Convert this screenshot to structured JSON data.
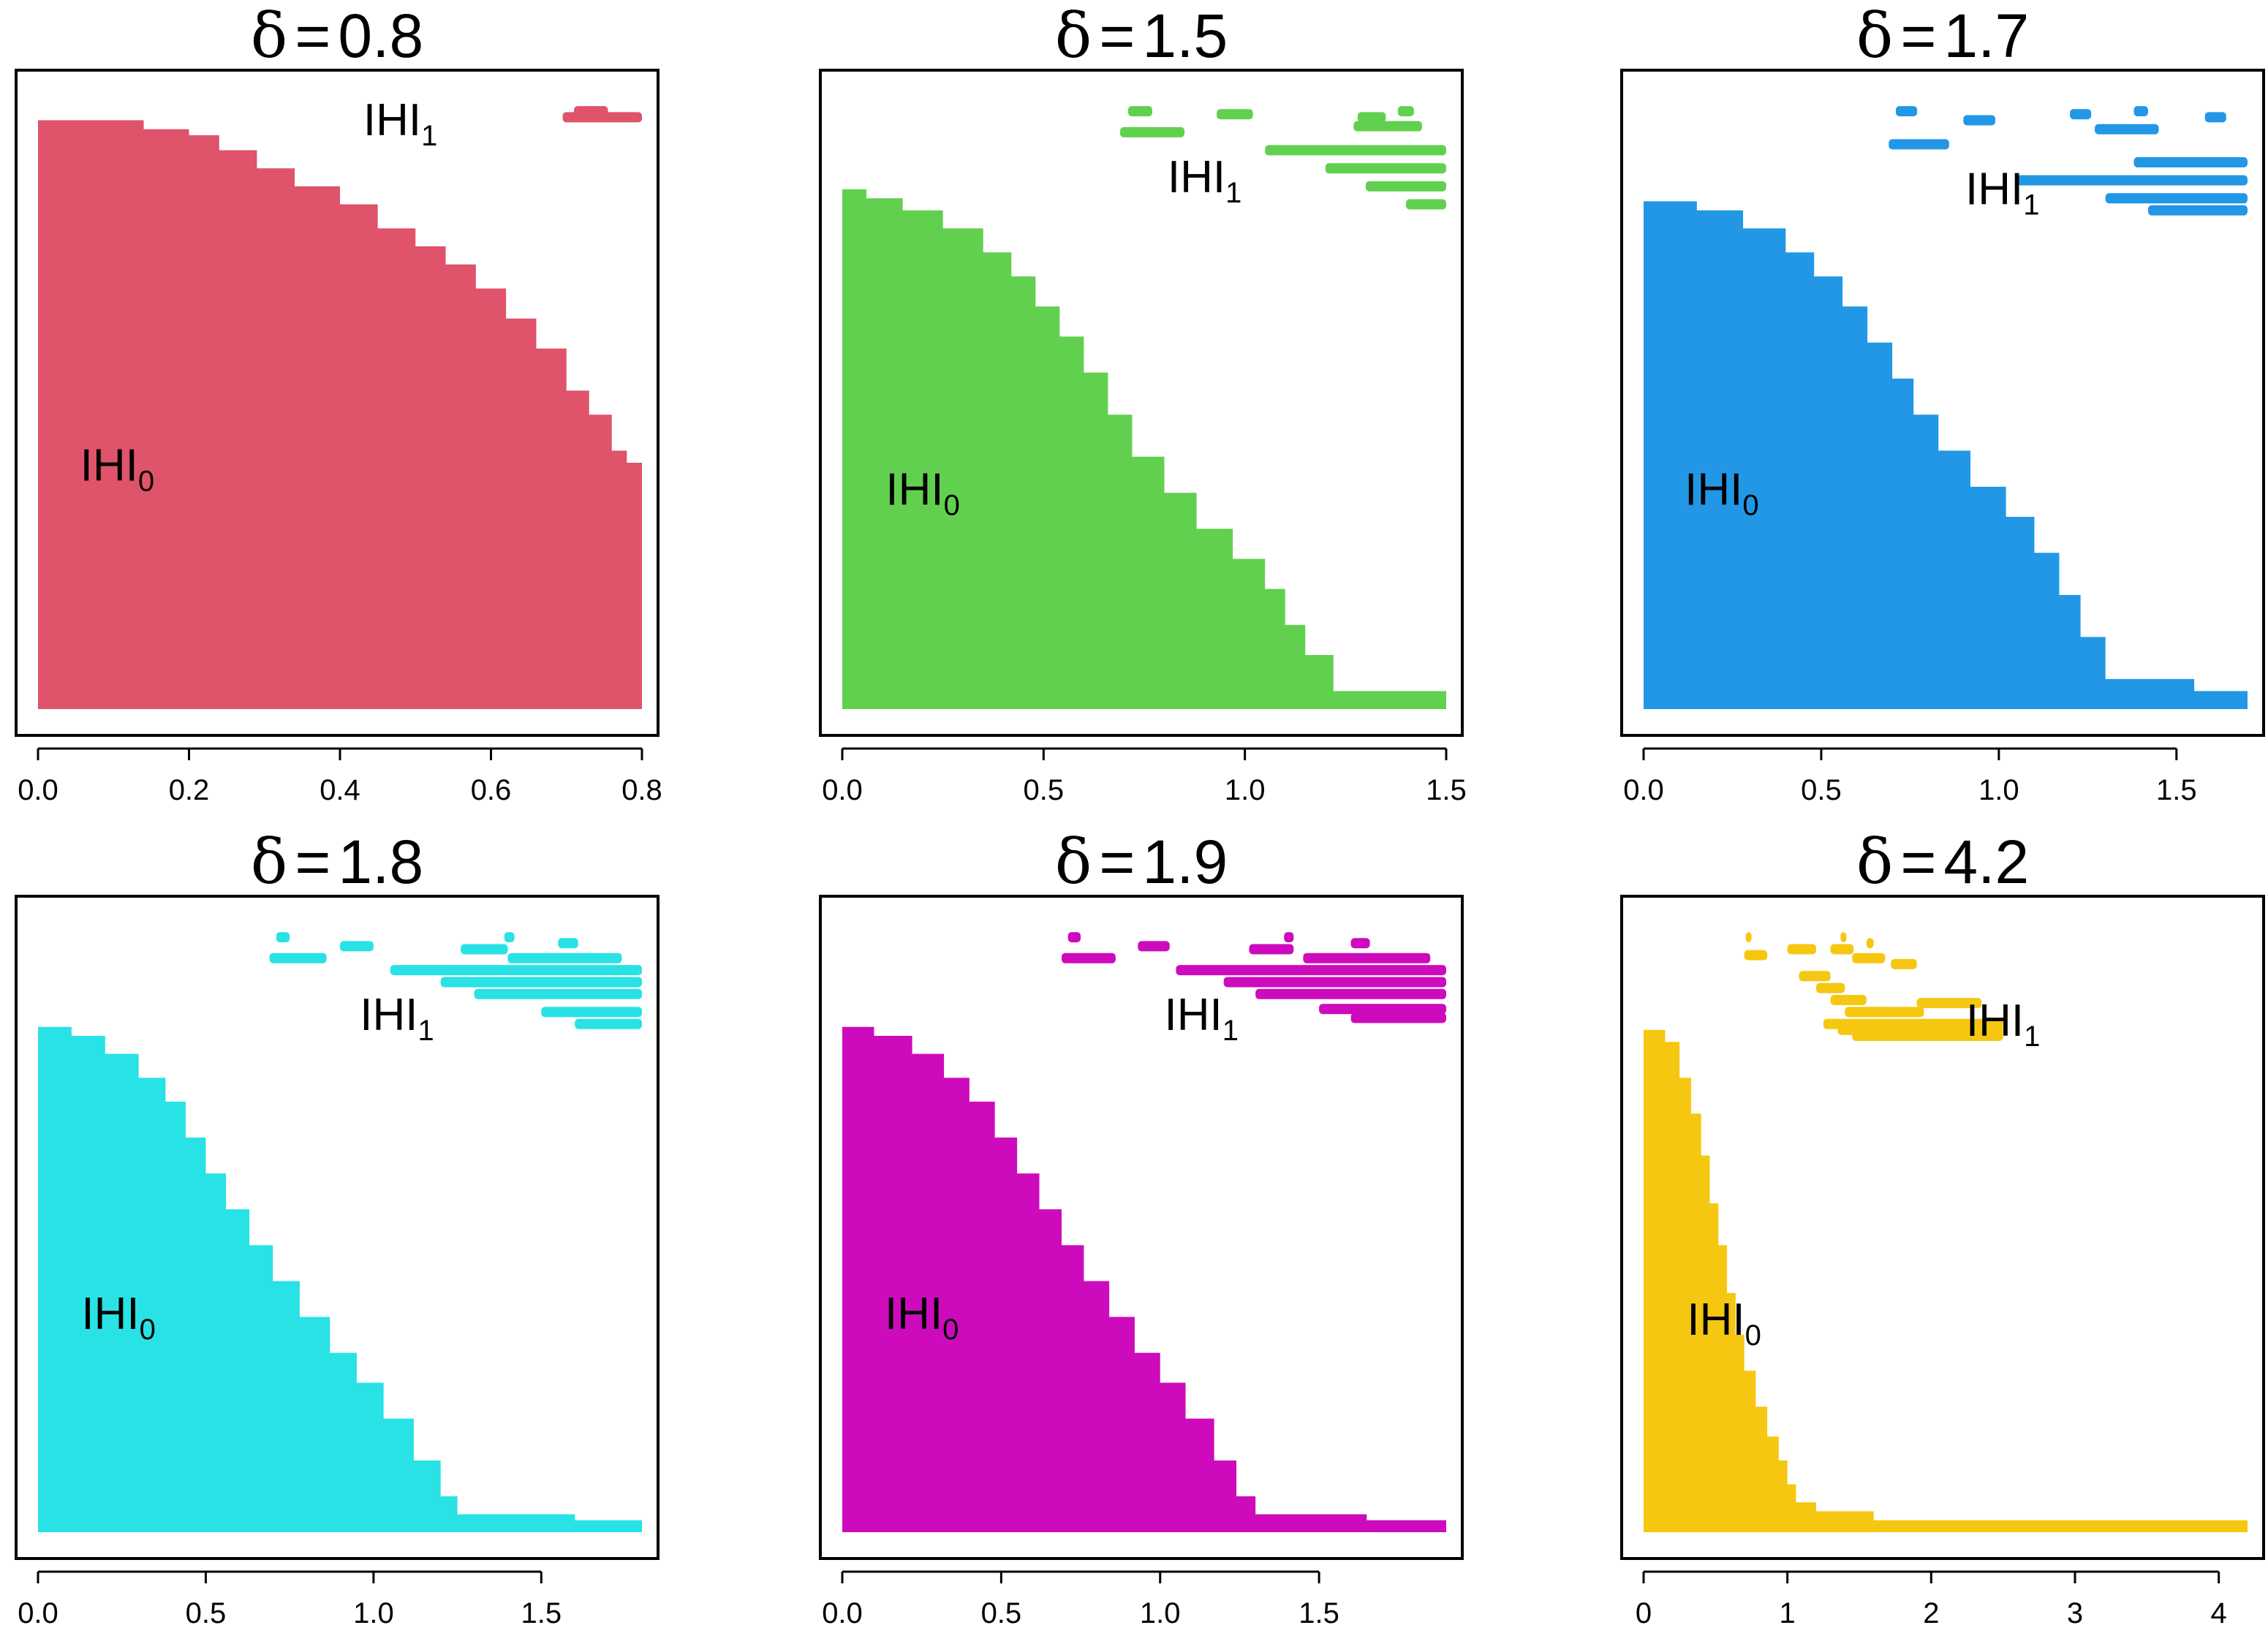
{
  "chart_data": [
    {
      "type": "area",
      "title_symbol": "δ",
      "title_equals": "=",
      "title_value": "0.8",
      "color": "#DF536B",
      "xlim": [
        0,
        0.8
      ],
      "ticks": [
        {
          "v": 0,
          "label": "0.0"
        },
        {
          "v": 0.2,
          "label": "0.2"
        },
        {
          "v": 0.4,
          "label": "0.4"
        },
        {
          "v": 0.6,
          "label": "0.6"
        },
        {
          "v": 0.8,
          "label": "0.8"
        }
      ],
      "labels": {
        "h0": "IHI",
        "h0_sub": "0",
        "h1": "IHI",
        "h1_sub": "1"
      },
      "label_pos": {
        "h0": [
          0.105,
          0.38
        ],
        "h1": [
          0.48,
          0.955
        ]
      },
      "staircase": [
        [
          0,
          0.98
        ],
        [
          0.14,
          0.965
        ],
        [
          0.2,
          0.955
        ],
        [
          0.24,
          0.93
        ],
        [
          0.29,
          0.9
        ],
        [
          0.34,
          0.87
        ],
        [
          0.4,
          0.84
        ],
        [
          0.45,
          0.8
        ],
        [
          0.5,
          0.77
        ],
        [
          0.54,
          0.74
        ],
        [
          0.58,
          0.7
        ],
        [
          0.62,
          0.65
        ],
        [
          0.66,
          0.6
        ],
        [
          0.7,
          0.53
        ],
        [
          0.73,
          0.49
        ],
        [
          0.76,
          0.43
        ],
        [
          0.78,
          0.41
        ],
        [
          0.8,
          0.38
        ]
      ],
      "floor": 0,
      "h1_segments": [
        [
          0.71,
          0.755,
          0.995
        ],
        [
          0.695,
          0.8,
          0.985
        ]
      ]
    },
    {
      "type": "area",
      "title_symbol": "δ",
      "title_equals": "=",
      "title_value": "1.5",
      "color": "#61D04F",
      "xlim": [
        0,
        1.5
      ],
      "ticks": [
        {
          "v": 0,
          "label": "0.0"
        },
        {
          "v": 0.5,
          "label": "0.5"
        },
        {
          "v": 1.0,
          "label": "1.0"
        },
        {
          "v": 1.5,
          "label": "1.5"
        }
      ],
      "labels": {
        "h0": "IHI",
        "h0_sub": "0",
        "h1": "IHI",
        "h1_sub": "1"
      },
      "label_pos": {
        "h0": [
          0.2,
          0.34
        ],
        "h1": [
          0.9,
          0.86
        ]
      },
      "staircase": [
        [
          0,
          0.865
        ],
        [
          0.06,
          0.85
        ],
        [
          0.15,
          0.83
        ],
        [
          0.25,
          0.8
        ],
        [
          0.35,
          0.76
        ],
        [
          0.42,
          0.72
        ],
        [
          0.48,
          0.67
        ],
        [
          0.54,
          0.62
        ],
        [
          0.6,
          0.56
        ],
        [
          0.66,
          0.49
        ],
        [
          0.72,
          0.42
        ],
        [
          0.8,
          0.36
        ],
        [
          0.88,
          0.3
        ],
        [
          0.97,
          0.25
        ],
        [
          1.05,
          0.2
        ],
        [
          1.1,
          0.14
        ],
        [
          1.15,
          0.09
        ],
        [
          1.22,
          0.03
        ],
        [
          1.5,
          0.015
        ]
      ],
      "floor": 0,
      "h1_segments": [
        [
          0.71,
          0.77,
          0.995
        ],
        [
          0.93,
          1.02,
          0.99
        ],
        [
          1.28,
          1.35,
          0.985
        ],
        [
          1.38,
          1.42,
          0.995
        ],
        [
          0.69,
          0.85,
          0.96
        ],
        [
          1.27,
          1.44,
          0.97
        ],
        [
          1.05,
          1.5,
          0.93
        ],
        [
          1.2,
          1.5,
          0.9
        ],
        [
          1.3,
          1.5,
          0.87
        ],
        [
          1.4,
          1.5,
          0.84
        ]
      ],
      "floor_band": 0.03
    },
    {
      "type": "area",
      "title_symbol": "δ",
      "title_equals": "=",
      "title_value": "1.7",
      "color": "#2297E6",
      "xlim": [
        0,
        1.7
      ],
      "ticks": [
        {
          "v": 0,
          "label": "0.0"
        },
        {
          "v": 0.5,
          "label": "0.5"
        },
        {
          "v": 1.0,
          "label": "1.0"
        },
        {
          "v": 1.5,
          "label": "1.5"
        }
      ],
      "labels": {
        "h0": "IHI",
        "h0_sub": "0",
        "h1": "IHI",
        "h1_sub": "1"
      },
      "label_pos": {
        "h0": [
          0.22,
          0.34
        ],
        "h1": [
          1.01,
          0.84
        ]
      },
      "staircase": [
        [
          0,
          0.845
        ],
        [
          0.15,
          0.83
        ],
        [
          0.28,
          0.8
        ],
        [
          0.4,
          0.76
        ],
        [
          0.48,
          0.72
        ],
        [
          0.56,
          0.67
        ],
        [
          0.63,
          0.61
        ],
        [
          0.7,
          0.55
        ],
        [
          0.76,
          0.49
        ],
        [
          0.83,
          0.43
        ],
        [
          0.92,
          0.37
        ],
        [
          1.02,
          0.32
        ],
        [
          1.1,
          0.26
        ],
        [
          1.17,
          0.19
        ],
        [
          1.23,
          0.12
        ],
        [
          1.3,
          0.05
        ],
        [
          1.55,
          0.03
        ],
        [
          1.7,
          0.015
        ]
      ],
      "floor": 0,
      "h1_segments": [
        [
          0.71,
          0.77,
          0.995
        ],
        [
          0.9,
          0.99,
          0.98
        ],
        [
          1.2,
          1.26,
          0.99
        ],
        [
          1.38,
          1.42,
          0.995
        ],
        [
          1.58,
          1.64,
          0.985
        ],
        [
          0.69,
          0.86,
          0.94
        ],
        [
          1.27,
          1.45,
          0.965
        ],
        [
          1.38,
          1.7,
          0.91
        ],
        [
          1.05,
          1.7,
          0.88
        ],
        [
          1.3,
          1.7,
          0.85
        ],
        [
          1.42,
          1.7,
          0.83
        ]
      ],
      "floor_band": 0.03
    },
    {
      "type": "area",
      "title_symbol": "δ",
      "title_equals": "=",
      "title_value": "1.8",
      "color": "#28E2E5",
      "xlim": [
        0,
        1.8
      ],
      "ticks": [
        {
          "v": 0,
          "label": "0.0"
        },
        {
          "v": 0.5,
          "label": "0.5"
        },
        {
          "v": 1.0,
          "label": "1.0"
        },
        {
          "v": 1.5,
          "label": "1.5"
        }
      ],
      "labels": {
        "h0": "IHI",
        "h0_sub": "0",
        "h1": "IHI",
        "h1_sub": "1"
      },
      "label_pos": {
        "h0": [
          0.24,
          0.34
        ],
        "h1": [
          1.07,
          0.84
        ]
      },
      "staircase": [
        [
          0,
          0.845
        ],
        [
          0.1,
          0.83
        ],
        [
          0.2,
          0.8
        ],
        [
          0.3,
          0.76
        ],
        [
          0.38,
          0.72
        ],
        [
          0.44,
          0.66
        ],
        [
          0.5,
          0.6
        ],
        [
          0.56,
          0.54
        ],
        [
          0.63,
          0.48
        ],
        [
          0.7,
          0.42
        ],
        [
          0.78,
          0.36
        ],
        [
          0.87,
          0.3
        ],
        [
          0.95,
          0.25
        ],
        [
          1.03,
          0.19
        ],
        [
          1.12,
          0.12
        ],
        [
          1.2,
          0.06
        ],
        [
          1.25,
          0.03
        ],
        [
          1.6,
          0.02
        ],
        [
          1.8,
          0.01
        ]
      ],
      "floor": 0,
      "h1_segments": [
        [
          0.71,
          0.75,
          0.995
        ],
        [
          0.9,
          1.0,
          0.98
        ],
        [
          1.39,
          1.42,
          0.995
        ],
        [
          1.55,
          1.61,
          0.985
        ],
        [
          0.69,
          0.86,
          0.96
        ],
        [
          1.26,
          1.4,
          0.975
        ],
        [
          1.4,
          1.74,
          0.96
        ],
        [
          1.05,
          1.8,
          0.94
        ],
        [
          1.2,
          1.8,
          0.92
        ],
        [
          1.3,
          1.8,
          0.9
        ],
        [
          1.5,
          1.8,
          0.87
        ],
        [
          1.6,
          1.8,
          0.85
        ]
      ],
      "floor_band": 0.03
    },
    {
      "type": "area",
      "title_symbol": "δ",
      "title_equals": "=",
      "title_value": "1.9",
      "color": "#CD0BBC",
      "xlim": [
        0,
        1.9
      ],
      "ticks": [
        {
          "v": 0,
          "label": "0.0"
        },
        {
          "v": 0.5,
          "label": "0.5"
        },
        {
          "v": 1.0,
          "label": "1.0"
        },
        {
          "v": 1.5,
          "label": "1.5"
        }
      ],
      "labels": {
        "h0": "IHI",
        "h0_sub": "0",
        "h1": "IHI",
        "h1_sub": "1"
      },
      "label_pos": {
        "h0": [
          0.25,
          0.34
        ],
        "h1": [
          1.13,
          0.84
        ]
      },
      "staircase": [
        [
          0,
          0.845
        ],
        [
          0.1,
          0.83
        ],
        [
          0.22,
          0.8
        ],
        [
          0.32,
          0.76
        ],
        [
          0.4,
          0.72
        ],
        [
          0.48,
          0.66
        ],
        [
          0.55,
          0.6
        ],
        [
          0.62,
          0.54
        ],
        [
          0.69,
          0.48
        ],
        [
          0.76,
          0.42
        ],
        [
          0.84,
          0.36
        ],
        [
          0.92,
          0.3
        ],
        [
          1.0,
          0.25
        ],
        [
          1.08,
          0.19
        ],
        [
          1.17,
          0.12
        ],
        [
          1.24,
          0.06
        ],
        [
          1.3,
          0.03
        ],
        [
          1.65,
          0.02
        ],
        [
          1.9,
          0.01
        ]
      ],
      "floor": 0,
      "h1_segments": [
        [
          0.71,
          0.75,
          0.995
        ],
        [
          0.93,
          1.03,
          0.98
        ],
        [
          1.39,
          1.42,
          0.995
        ],
        [
          1.6,
          1.66,
          0.985
        ],
        [
          0.69,
          0.86,
          0.96
        ],
        [
          1.28,
          1.42,
          0.975
        ],
        [
          1.45,
          1.85,
          0.96
        ],
        [
          1.05,
          1.9,
          0.94
        ],
        [
          1.2,
          1.9,
          0.92
        ],
        [
          1.3,
          1.9,
          0.9
        ],
        [
          1.5,
          1.9,
          0.875
        ],
        [
          1.6,
          1.9,
          0.86
        ]
      ],
      "floor_band": 0.03
    },
    {
      "type": "area",
      "title_symbol": "δ",
      "title_equals": "=",
      "title_value": "4.2",
      "color": "#F5C710",
      "xlim": [
        0,
        4.2
      ],
      "ticks": [
        {
          "v": 0,
          "label": "0"
        },
        {
          "v": 1,
          "label": "1"
        },
        {
          "v": 2,
          "label": "2"
        },
        {
          "v": 3,
          "label": "3"
        },
        {
          "v": 4,
          "label": "4"
        }
      ],
      "labels": {
        "h0": "IHI",
        "h0_sub": "0",
        "h1": "IHI",
        "h1_sub": "1"
      },
      "label_pos": {
        "h0": [
          0.56,
          0.33
        ],
        "h1": [
          2.5,
          0.83
        ]
      },
      "staircase": [
        [
          0,
          0.84
        ],
        [
          0.15,
          0.82
        ],
        [
          0.25,
          0.76
        ],
        [
          0.33,
          0.7
        ],
        [
          0.4,
          0.63
        ],
        [
          0.46,
          0.55
        ],
        [
          0.52,
          0.48
        ],
        [
          0.58,
          0.4
        ],
        [
          0.64,
          0.33
        ],
        [
          0.7,
          0.27
        ],
        [
          0.78,
          0.21
        ],
        [
          0.86,
          0.16
        ],
        [
          0.94,
          0.12
        ],
        [
          1.0,
          0.08
        ],
        [
          1.06,
          0.05
        ],
        [
          1.2,
          0.035
        ],
        [
          1.6,
          0.02
        ],
        [
          4.2,
          0.01
        ]
      ],
      "floor": 0,
      "h1_segments": [
        [
          0.71,
          0.75,
          0.995
        ],
        [
          1.37,
          1.41,
          0.995
        ],
        [
          1.55,
          1.6,
          0.985
        ],
        [
          1.3,
          1.46,
          0.975
        ],
        [
          0.7,
          0.86,
          0.965
        ],
        [
          1.0,
          1.2,
          0.975
        ],
        [
          1.45,
          1.68,
          0.96
        ],
        [
          1.72,
          1.9,
          0.95
        ],
        [
          1.08,
          1.3,
          0.93
        ],
        [
          1.2,
          1.4,
          0.91
        ],
        [
          1.3,
          1.55,
          0.89
        ],
        [
          1.4,
          1.75,
          0.87
        ],
        [
          1.55,
          1.95,
          0.87
        ],
        [
          1.9,
          2.35,
          0.885
        ],
        [
          1.25,
          2.5,
          0.85
        ],
        [
          1.35,
          2.5,
          0.84
        ],
        [
          1.45,
          2.5,
          0.83
        ]
      ],
      "floor_band": 0.025
    }
  ]
}
